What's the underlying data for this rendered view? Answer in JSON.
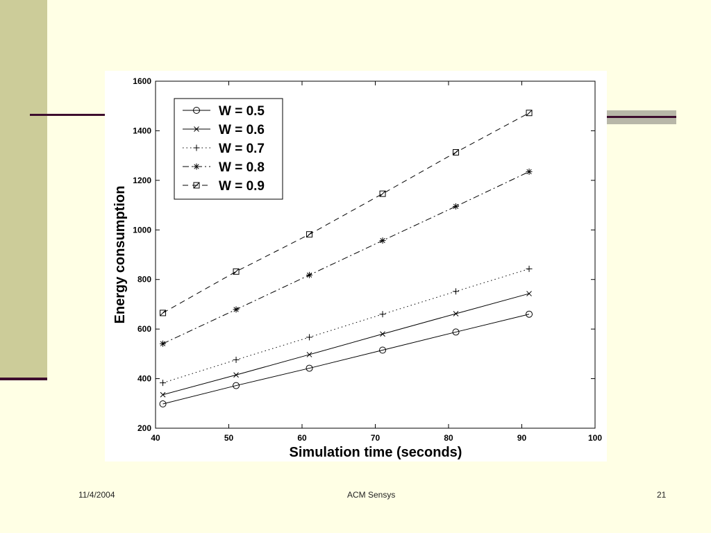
{
  "slide": {
    "footer_date": "11/4/2004",
    "footer_center": "ACM Sensys",
    "page_number": "21"
  },
  "colors": {
    "background": "#ffffe5",
    "side_bar": "#cccc99",
    "accent_line": "#3d0d2e",
    "right_band": "#b8b7a8"
  },
  "chart_data": {
    "type": "line",
    "title": "",
    "xlabel": "Simulation time (seconds)",
    "ylabel": "Energy consumption",
    "xlim": [
      40,
      100
    ],
    "ylim": [
      200,
      1600
    ],
    "xticks": [
      40,
      50,
      60,
      70,
      80,
      90,
      100
    ],
    "yticks": [
      200,
      400,
      600,
      800,
      1000,
      1200,
      1400,
      1600
    ],
    "grid": false,
    "legend_position": "top-left",
    "x": [
      41,
      51,
      61,
      71,
      81,
      91
    ],
    "series": [
      {
        "name": "W = 0.5",
        "marker": "circle",
        "line": "solid",
        "values": [
          298,
          372,
          442,
          515,
          588,
          660
        ]
      },
      {
        "name": "W = 0.6",
        "marker": "x",
        "line": "solid",
        "values": [
          335,
          415,
          497,
          580,
          662,
          743
        ]
      },
      {
        "name": "W = 0.7",
        "marker": "plus",
        "line": "dotted",
        "values": [
          383,
          476,
          567,
          660,
          752,
          843
        ]
      },
      {
        "name": "W = 0.8",
        "marker": "star",
        "line": "dashdot",
        "values": [
          541,
          679,
          818,
          957,
          1095,
          1235
        ]
      },
      {
        "name": "W = 0.9",
        "marker": "square",
        "line": "dashed",
        "values": [
          665,
          832,
          982,
          1146,
          1313,
          1472
        ]
      }
    ]
  }
}
